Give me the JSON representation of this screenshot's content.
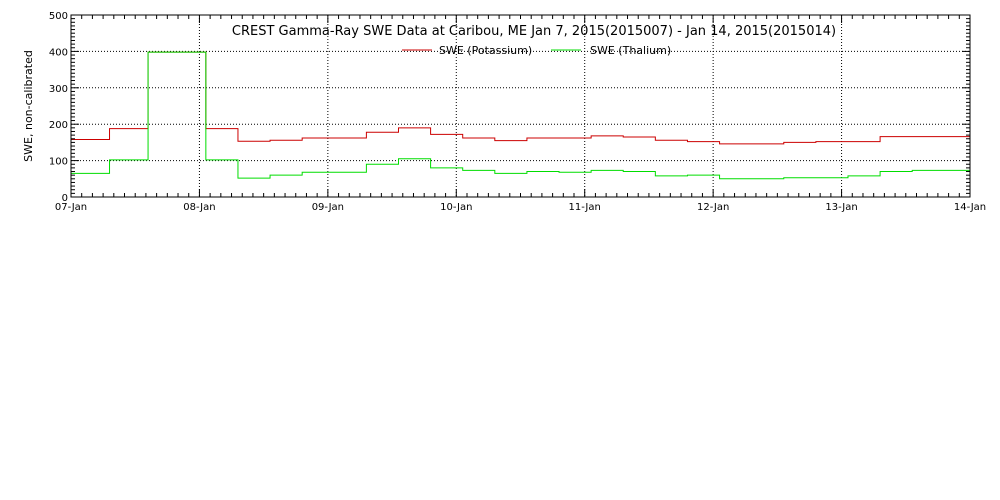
{
  "chart_data": {
    "type": "line",
    "title": "CREST Gamma-Ray SWE Data at Caribou, ME   Jan  7, 2015(2015007) - Jan 14, 2015(2015014)",
    "xlabel": "",
    "ylabel": "SWE, non-calibrated",
    "ylim": [
      0,
      500
    ],
    "xlim": [
      0,
      7
    ],
    "x_unit": "days from 07-Jan",
    "x_ticks": [
      "07-Jan",
      "08-Jan",
      "09-Jan",
      "10-Jan",
      "11-Jan",
      "12-Jan",
      "13-Jan",
      "14-Jan"
    ],
    "y_ticks": [
      0,
      100,
      200,
      300,
      400,
      500
    ],
    "grid": true,
    "legend_position": "top-center",
    "series": [
      {
        "name": "SWE (Potassium)",
        "color": "#cc0000",
        "points": [
          [
            0.0,
            158
          ],
          [
            0.3,
            158
          ],
          [
            0.3,
            188
          ],
          [
            0.6,
            188
          ],
          [
            0.6,
            398
          ],
          [
            1.05,
            398
          ],
          [
            1.05,
            188
          ],
          [
            1.3,
            188
          ],
          [
            1.3,
            153
          ],
          [
            1.55,
            153
          ],
          [
            1.55,
            156
          ],
          [
            1.8,
            156
          ],
          [
            1.8,
            162
          ],
          [
            2.3,
            162
          ],
          [
            2.3,
            178
          ],
          [
            2.55,
            178
          ],
          [
            2.55,
            190
          ],
          [
            2.8,
            190
          ],
          [
            2.8,
            172
          ],
          [
            3.05,
            172
          ],
          [
            3.05,
            162
          ],
          [
            3.3,
            162
          ],
          [
            3.3,
            155
          ],
          [
            3.55,
            155
          ],
          [
            3.55,
            162
          ],
          [
            4.05,
            162
          ],
          [
            4.05,
            168
          ],
          [
            4.3,
            168
          ],
          [
            4.3,
            165
          ],
          [
            4.55,
            165
          ],
          [
            4.55,
            156
          ],
          [
            4.8,
            156
          ],
          [
            4.8,
            152
          ],
          [
            5.05,
            152
          ],
          [
            5.05,
            146
          ],
          [
            5.55,
            146
          ],
          [
            5.55,
            150
          ],
          [
            5.8,
            150
          ],
          [
            5.8,
            152
          ],
          [
            6.3,
            152
          ],
          [
            6.3,
            166
          ],
          [
            7.0,
            166
          ]
        ]
      },
      {
        "name": "SWE (Thalium)",
        "color": "#00dd00",
        "points": [
          [
            0.0,
            65
          ],
          [
            0.3,
            65
          ],
          [
            0.3,
            102
          ],
          [
            0.6,
            102
          ],
          [
            0.6,
            398
          ],
          [
            1.05,
            398
          ],
          [
            1.05,
            102
          ],
          [
            1.3,
            102
          ],
          [
            1.3,
            52
          ],
          [
            1.55,
            52
          ],
          [
            1.55,
            60
          ],
          [
            1.8,
            60
          ],
          [
            1.8,
            68
          ],
          [
            2.3,
            68
          ],
          [
            2.3,
            90
          ],
          [
            2.55,
            90
          ],
          [
            2.55,
            105
          ],
          [
            2.8,
            105
          ],
          [
            2.8,
            80
          ],
          [
            3.05,
            80
          ],
          [
            3.05,
            73
          ],
          [
            3.3,
            73
          ],
          [
            3.3,
            65
          ],
          [
            3.55,
            65
          ],
          [
            3.55,
            70
          ],
          [
            3.8,
            70
          ],
          [
            3.8,
            68
          ],
          [
            4.05,
            68
          ],
          [
            4.05,
            73
          ],
          [
            4.3,
            73
          ],
          [
            4.3,
            70
          ],
          [
            4.55,
            70
          ],
          [
            4.55,
            58
          ],
          [
            4.8,
            58
          ],
          [
            4.8,
            60
          ],
          [
            5.05,
            60
          ],
          [
            5.05,
            50
          ],
          [
            5.55,
            50
          ],
          [
            5.55,
            53
          ],
          [
            6.05,
            53
          ],
          [
            6.05,
            58
          ],
          [
            6.3,
            58
          ],
          [
            6.3,
            70
          ],
          [
            6.55,
            70
          ],
          [
            6.55,
            73
          ],
          [
            7.0,
            73
          ]
        ]
      }
    ]
  }
}
